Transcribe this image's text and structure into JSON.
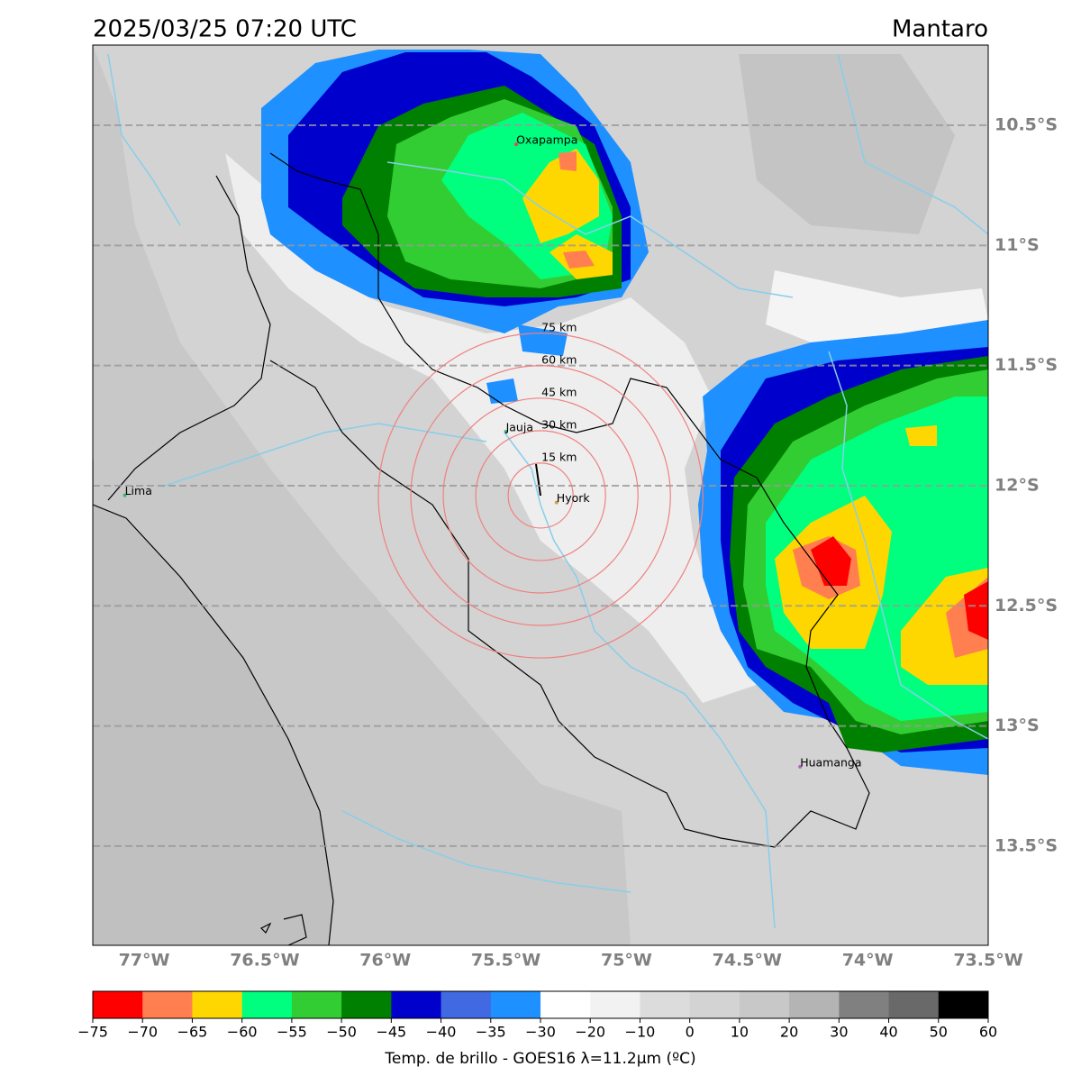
{
  "header": {
    "title": "2025/03/25 07:20 UTC",
    "region": "Mantaro"
  },
  "map": {
    "xlim": [
      -77.213,
      -73.5
    ],
    "ylim": [
      -13.913,
      -10.166
    ],
    "xticks": [
      {
        "value": -77,
        "label": "77°W"
      },
      {
        "value": -76.5,
        "label": "76.5°W"
      },
      {
        "value": -76,
        "label": "76°W"
      },
      {
        "value": -75.5,
        "label": "75.5°W"
      },
      {
        "value": -75,
        "label": "75°W"
      },
      {
        "value": -74.5,
        "label": "74.5°W"
      },
      {
        "value": -74,
        "label": "74°W"
      },
      {
        "value": -73.5,
        "label": "73.5°W"
      }
    ],
    "yticks": [
      {
        "value": -10.5,
        "label": "10.5°S"
      },
      {
        "value": -11,
        "label": "11°S"
      },
      {
        "value": -11.5,
        "label": "11.5°S"
      },
      {
        "value": -12,
        "label": "12°S"
      },
      {
        "value": -12.5,
        "label": "12.5°S"
      },
      {
        "value": -13,
        "label": "13°S"
      },
      {
        "value": -13.5,
        "label": "13.5°S"
      }
    ],
    "grid": "y",
    "places": [
      {
        "name": "Oxapampa",
        "lon": -75.457,
        "lat": -10.579,
        "color": "#d05050"
      },
      {
        "name": "Jauja",
        "lon": -75.5,
        "lat": -11.775,
        "color": "#3cb371"
      },
      {
        "name": "Lima",
        "lon": -77.08,
        "lat": -12.04,
        "color": "#3cb371"
      },
      {
        "name": "Hyork",
        "lon": -75.29,
        "lat": -12.07,
        "color": "#d2a040"
      },
      {
        "name": "Huamanga",
        "lon": -74.28,
        "lat": -13.17,
        "color": "#c060c0"
      }
    ],
    "rings": {
      "center_lon": -75.356,
      "center_lat": -12.041,
      "color": "#f08080",
      "radii": [
        {
          "value": 15,
          "label": "15 km"
        },
        {
          "value": 30,
          "label": "30 km"
        },
        {
          "value": 45,
          "label": "45 km"
        },
        {
          "value": 60,
          "label": "60 km"
        },
        {
          "value": 75,
          "label": "75 km"
        }
      ]
    }
  },
  "colorbar": {
    "label": "Temp. de brillo - GOES16 λ=11.2μm (ºC)",
    "ticks": [
      {
        "value": -75,
        "label": "−75"
      },
      {
        "value": -70,
        "label": "−70"
      },
      {
        "value": -65,
        "label": "−65"
      },
      {
        "value": -60,
        "label": "−60"
      },
      {
        "value": -55,
        "label": "−55"
      },
      {
        "value": -50,
        "label": "−50"
      },
      {
        "value": -45,
        "label": "−45"
      },
      {
        "value": -40,
        "label": "−40"
      },
      {
        "value": -35,
        "label": "−35"
      },
      {
        "value": -30,
        "label": "−30"
      },
      {
        "value": -20,
        "label": "−20"
      },
      {
        "value": -10,
        "label": "−10"
      },
      0,
      10,
      20,
      30,
      40,
      50,
      60
    ],
    "colors": [
      "#ff0000",
      "#ff7f50",
      "#ffd700",
      "#00ff7f",
      "#32cd32",
      "#008000",
      "#0000cd",
      "#4169e1",
      "#1e90ff",
      "#ffffff",
      "#f2f2f2",
      "#dcdcdc",
      "#d3d3d3",
      "#c8c8c8",
      "#b4b4b4",
      "#808080",
      "#696969",
      "#000000"
    ]
  }
}
